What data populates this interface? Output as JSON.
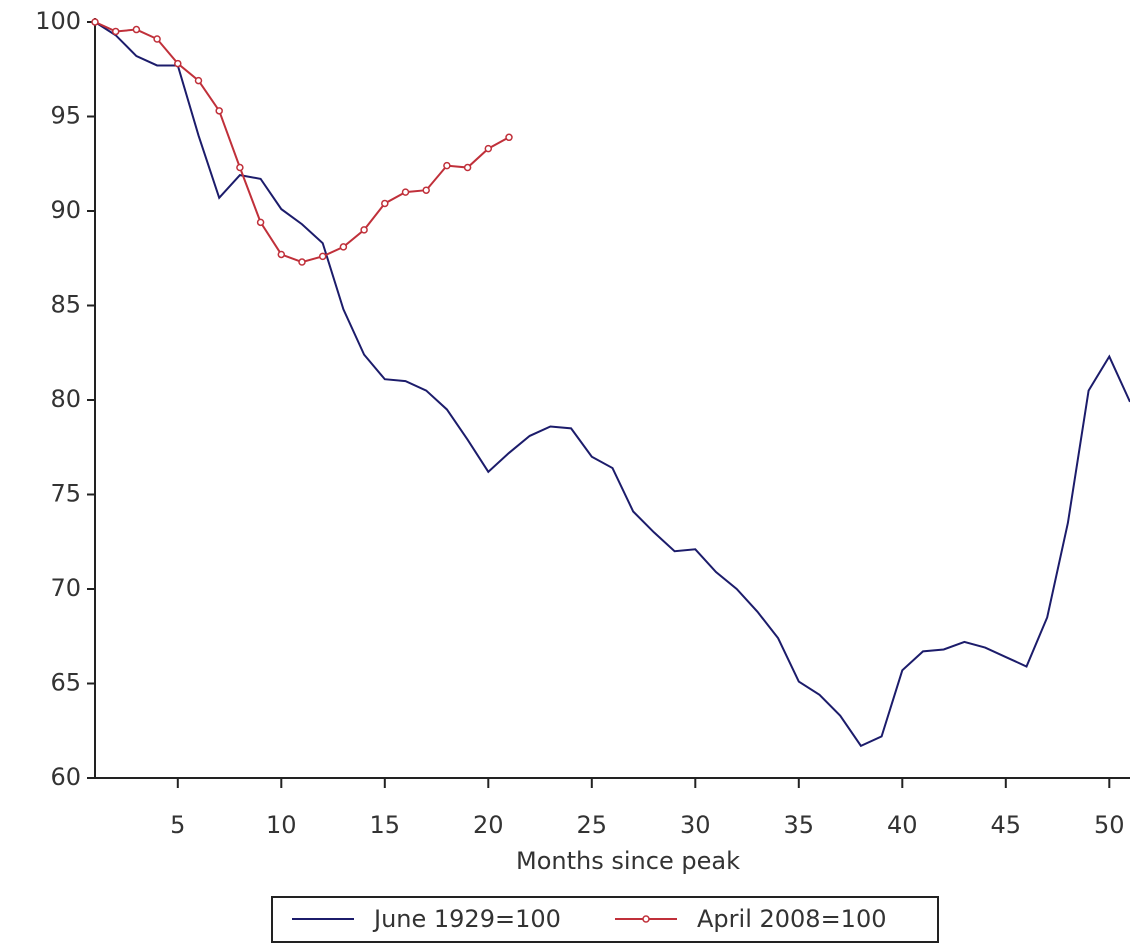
{
  "chart_data": {
    "type": "line",
    "x_label": "Months since peak",
    "x": [
      1,
      2,
      3,
      4,
      5,
      6,
      7,
      8,
      9,
      10,
      11,
      12,
      13,
      14,
      15,
      16,
      17,
      18,
      19,
      20,
      21,
      22,
      23,
      24,
      25,
      26,
      27,
      28,
      29,
      30,
      31,
      32,
      33,
      34,
      35,
      36,
      37,
      38,
      39,
      40,
      41,
      42,
      43,
      44,
      45,
      46,
      47,
      48,
      49,
      50,
      51
    ],
    "series": [
      {
        "name": "June 1929=100",
        "color": "#1c1c6b",
        "markers": false,
        "values": [
          100,
          99.3,
          98.2,
          97.7,
          97.7,
          94,
          90.7,
          91.9,
          91.7,
          90.1,
          89.3,
          88.3,
          84.8,
          82.4,
          81.1,
          81,
          80.5,
          79.5,
          77.9,
          76.2,
          77.2,
          78.1,
          78.6,
          78.5,
          77,
          76.4,
          74.1,
          73,
          72,
          72.1,
          70.9,
          70,
          68.8,
          67.4,
          65.1,
          64.4,
          63.3,
          61.7,
          62.2,
          65.7,
          66.7,
          66.8,
          67.2,
          66.9,
          66.4,
          65.9,
          68.5,
          73.5,
          80.5,
          82.3,
          79.9
        ]
      },
      {
        "name": "April 2008=100",
        "color": "#c0303a",
        "markers": true,
        "values": [
          100,
          99.5,
          99.6,
          99.1,
          97.8,
          96.9,
          95.3,
          92.3,
          89.4,
          87.7,
          87.3,
          87.6,
          88.1,
          89,
          90.4,
          91,
          91.1,
          92.4,
          92.3,
          93.3,
          93.9,
          null,
          null,
          null,
          null,
          null,
          null,
          null,
          null,
          null,
          null,
          null,
          null,
          null,
          null,
          null,
          null,
          null,
          null,
          null,
          null,
          null,
          null,
          null,
          null,
          null,
          null,
          null,
          null,
          null,
          null
        ]
      }
    ],
    "xlim": [
      1,
      51
    ],
    "xticks": [
      5,
      10,
      15,
      20,
      25,
      30,
      35,
      40,
      45,
      50
    ],
    "ylim": [
      60,
      100
    ],
    "yticks": [
      60,
      65,
      70,
      75,
      80,
      85,
      90,
      95,
      100
    ],
    "grid": false,
    "legend": "bottom"
  }
}
